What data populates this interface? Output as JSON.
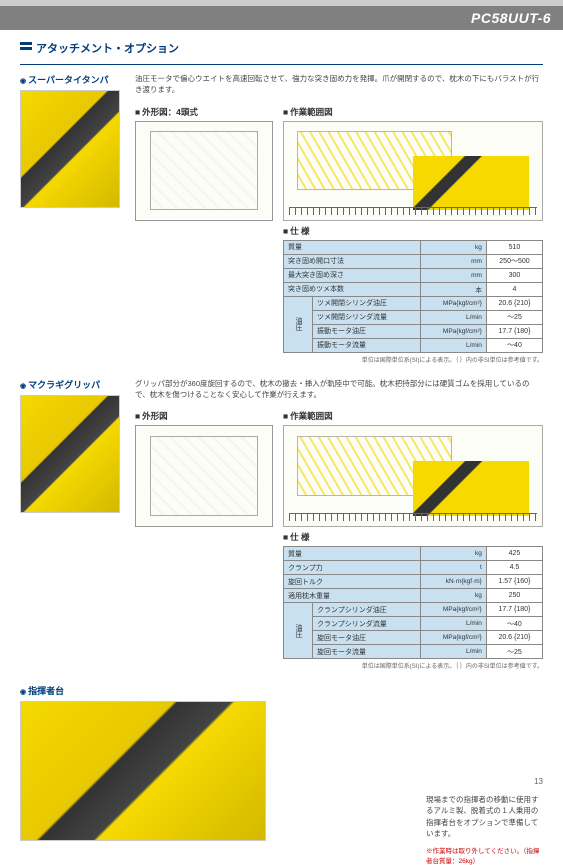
{
  "header": {
    "model": "PC58UUT-6"
  },
  "section_title": "アタッチメント・オプション",
  "att1": {
    "name": "スーパータイタンパ",
    "desc": "油圧モータで偏心ウエイトを高速回転させて、強力な突き固め力を発揮。爪が開閉するので、枕木の下にもバラストが行き渡ります。",
    "dim_label": "外形図：4頭式",
    "work_label": "作業範囲図",
    "spec_label": "仕 様",
    "table": {
      "rows": [
        {
          "label": "質量",
          "unit": "kg",
          "value": "510"
        },
        {
          "label": "突き固め開口寸法",
          "unit": "mm",
          "value": "250～500"
        },
        {
          "label": "最大突き固め深さ",
          "unit": "mm",
          "value": "300"
        },
        {
          "label": "突き固めツメ本数",
          "unit": "本",
          "value": "4"
        }
      ],
      "group_label": "油圧",
      "group_rows": [
        {
          "label": "ツメ開閉シリンダ油圧",
          "unit": "MPa{kgf/cm²}",
          "value": "20.6 {210}"
        },
        {
          "label": "ツメ開閉シリンダ流量",
          "unit": "L/min",
          "value": "～25"
        },
        {
          "label": "振動モータ油圧",
          "unit": "MPa{kgf/cm²}",
          "value": "17.7 {180}"
        },
        {
          "label": "振動モータ流量",
          "unit": "L/min",
          "value": "～40"
        }
      ]
    },
    "note": "単位は国際単位系(SI)による表示。｛ ｝内の非SI単位は参考値です。"
  },
  "att2": {
    "name": "マクラギグリッパ",
    "desc": "グリッパ部分が360度旋回するので、枕木の撤去・挿入が軌陸中で可能。枕木把持部分には硬質ゴムを採用しているので、枕木を傷つけることなく安心して作業が行えます。",
    "dim_label": "外形図",
    "work_label": "作業範囲図",
    "spec_label": "仕 様",
    "table": {
      "rows": [
        {
          "label": "質量",
          "unit": "kg",
          "value": "425"
        },
        {
          "label": "クランプ力",
          "unit": "t",
          "value": "4.5"
        },
        {
          "label": "旋回トルク",
          "unit": "kN·m{kgf·m}",
          "value": "1.57 {160}"
        },
        {
          "label": "適用枕木重量",
          "unit": "kg",
          "value": "250"
        }
      ],
      "group_label": "油圧",
      "group_rows": [
        {
          "label": "クランプシリンダ油圧",
          "unit": "MPa{kgf/cm²}",
          "value": "17.7 {180}"
        },
        {
          "label": "クランプシリンダ流量",
          "unit": "L/min",
          "value": "～40"
        },
        {
          "label": "旋回モータ油圧",
          "unit": "MPa{kgf/cm²}",
          "value": "20.6 {210}"
        },
        {
          "label": "旋回モータ流量",
          "unit": "L/min",
          "value": "～25"
        }
      ]
    },
    "note": "単位は国際単位系(SI)による表示。｛ ｝内の非SI単位は参考値です。"
  },
  "att3": {
    "name": "指揮者台",
    "desc": "現場までの指揮者の移動に使用するアルミ製、脱着式の１人乗用の指揮者台をオプションで準備しています。",
    "red_note": "※作業時は取り外してください。（指揮者台質量：26kg）"
  },
  "page_num": "13"
}
